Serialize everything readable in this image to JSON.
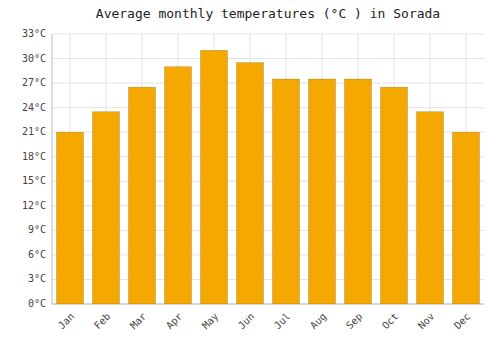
{
  "chart_data": {
    "type": "bar",
    "title": "Average monthly temperatures (°C ) in Sorada",
    "categories": [
      "Jan",
      "Feb",
      "Mar",
      "Apr",
      "May",
      "Jun",
      "Jul",
      "Aug",
      "Sep",
      "Oct",
      "Nov",
      "Dec"
    ],
    "values": [
      21,
      23.5,
      26.5,
      29,
      31,
      29.5,
      27.5,
      27.5,
      27.5,
      26.5,
      23.5,
      21
    ],
    "color": "#F5A800",
    "ylim": [
      0,
      33
    ],
    "yticks": [
      {
        "value": 0,
        "label": "0°C"
      },
      {
        "value": 3,
        "label": "3°C"
      },
      {
        "value": 6,
        "label": "6°C"
      },
      {
        "value": 9,
        "label": "9°C"
      },
      {
        "value": 12,
        "label": "12°C"
      },
      {
        "value": 15,
        "label": "15°C"
      },
      {
        "value": 18,
        "label": "18°C"
      },
      {
        "value": 21,
        "label": "21°C"
      },
      {
        "value": 24,
        "label": "24°C"
      },
      {
        "value": 27,
        "label": "27°C"
      },
      {
        "value": 30,
        "label": "30°C"
      },
      {
        "value": 33,
        "label": "33°C"
      }
    ],
    "grid": true
  }
}
